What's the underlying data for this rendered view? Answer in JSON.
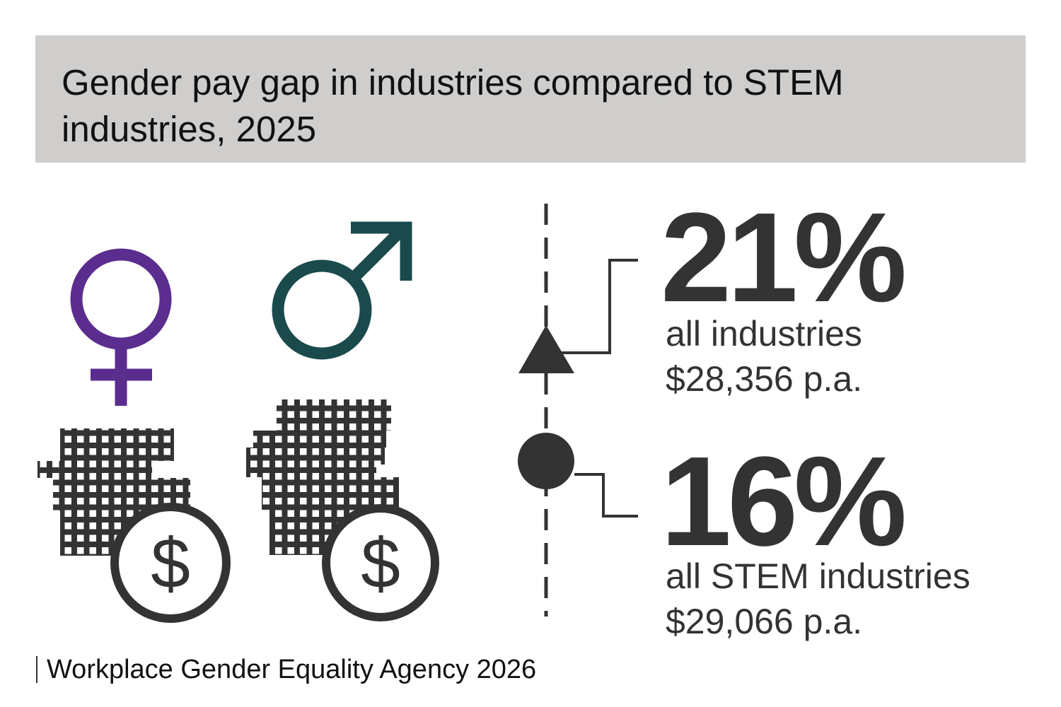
{
  "title": "Gender pay gap in industries compared to STEM industries, 2025",
  "stats": [
    {
      "percent": "21%",
      "label": "all industries",
      "amount": "$28,356 p.a.",
      "marker": "triangle-up-icon"
    },
    {
      "percent": "16%",
      "label": "all STEM industries",
      "amount": "$29,066 p.a.",
      "marker": "circle-dot-icon"
    }
  ],
  "source": "Workplace Gender Equality Agency 2026",
  "icons": {
    "female": "female-symbol-icon",
    "male": "male-symbol-icon",
    "coins": "coin-stack-dollar-icon"
  },
  "colors": {
    "header_bg": "#cfcecc",
    "female": "#5b2d8e",
    "male": "#1a4a4c",
    "dark": "#333333"
  }
}
